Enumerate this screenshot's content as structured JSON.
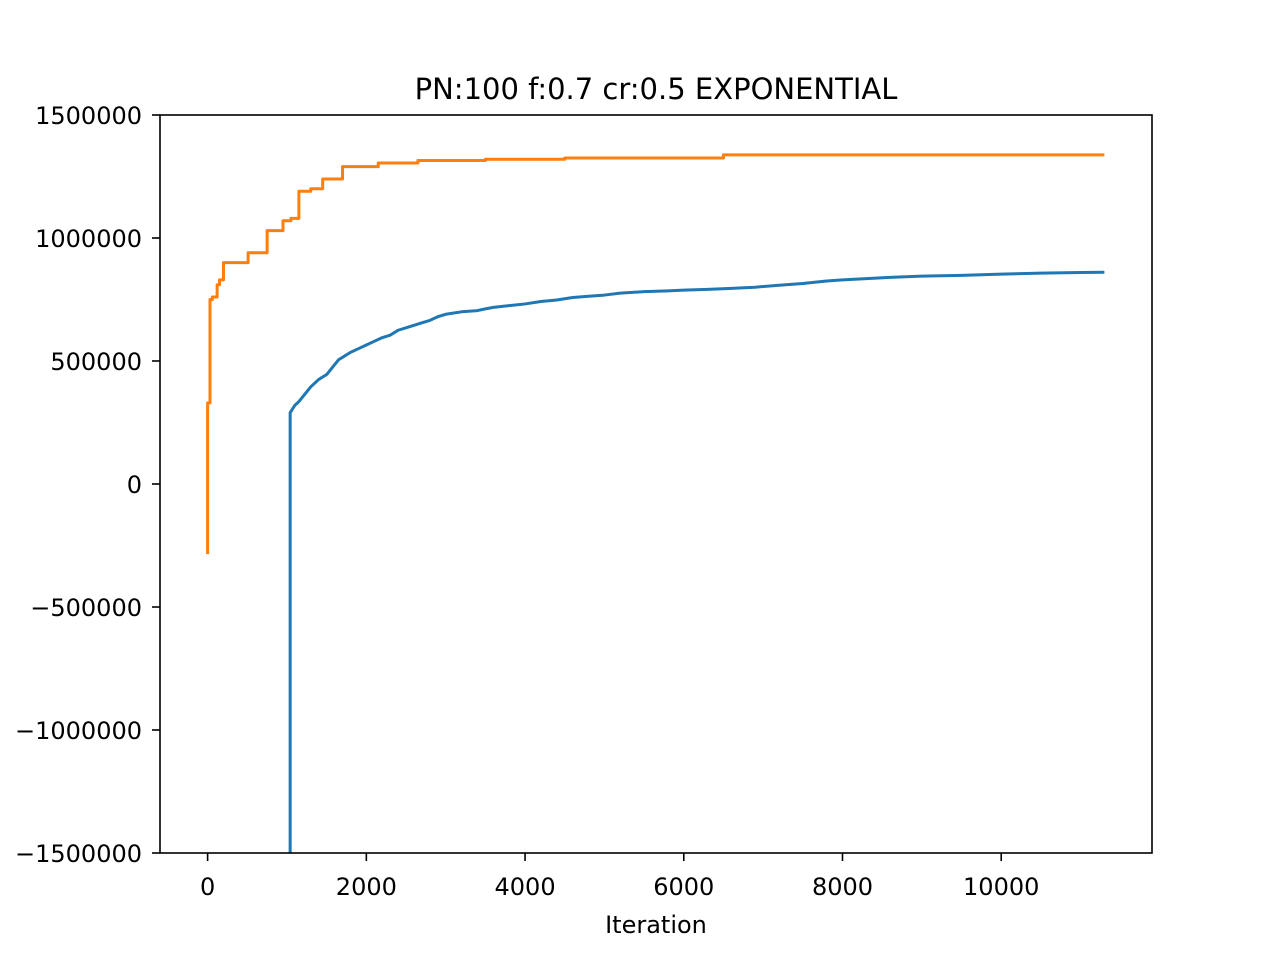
{
  "chart_data": {
    "type": "line",
    "title": "PN:100 f:0.7 cr:0.5 EXPONENTIAL",
    "xlabel": "Iteration",
    "ylabel": "",
    "xlim": [
      -600,
      11900
    ],
    "ylim": [
      -1500000,
      1500000
    ],
    "xticks": [
      0,
      2000,
      4000,
      6000,
      8000,
      10000
    ],
    "xtick_labels": [
      "0",
      "2000",
      "4000",
      "6000",
      "8000",
      "10000"
    ],
    "yticks": [
      -1500000,
      -1000000,
      -500000,
      0,
      500000,
      1000000,
      1500000
    ],
    "ytick_labels": [
      "−1500000",
      "−1000000",
      "−500000",
      "0",
      "500000",
      "1000000",
      "1500000"
    ],
    "grid": false,
    "legend": "none",
    "series": [
      {
        "color": "#1f77b4",
        "step": false,
        "x": [
          1040,
          1040,
          1080,
          1100,
          1150,
          1200,
          1250,
          1300,
          1400,
          1500,
          1600,
          1650,
          1700,
          1800,
          1900,
          2000,
          2100,
          2200,
          2300,
          2400,
          2500,
          2600,
          2700,
          2800,
          2900,
          3000,
          3200,
          3400,
          3500,
          3600,
          3800,
          4000,
          4200,
          4400,
          4600,
          4800,
          5000,
          5200,
          5300,
          5500,
          5800,
          6000,
          6300,
          6600,
          6900,
          7200,
          7500,
          7800,
          8000,
          8300,
          8600,
          9000,
          9500,
          10000,
          10500,
          11000,
          11300
        ],
        "y": [
          -1500000,
          290000,
          310000,
          320000,
          335000,
          355000,
          375000,
          395000,
          425000,
          445000,
          485000,
          505000,
          515000,
          535000,
          550000,
          565000,
          580000,
          595000,
          605000,
          625000,
          635000,
          645000,
          655000,
          665000,
          680000,
          690000,
          700000,
          705000,
          712000,
          718000,
          725000,
          732000,
          742000,
          748000,
          758000,
          763000,
          768000,
          776000,
          778000,
          782000,
          785000,
          788000,
          791000,
          795000,
          800000,
          808000,
          815000,
          825000,
          830000,
          835000,
          840000,
          845000,
          848000,
          853000,
          857000,
          860000,
          861000
        ]
      },
      {
        "color": "#ff7f0e",
        "step": true,
        "x": [
          0,
          0,
          30,
          60,
          120,
          150,
          200,
          220,
          510,
          750,
          950,
          1050,
          1150,
          1300,
          1450,
          1700,
          2150,
          2650,
          3500,
          4500,
          6500,
          11300
        ],
        "y": [
          -285000,
          330000,
          750000,
          760000,
          810000,
          830000,
          900000,
          900000,
          940000,
          1030000,
          1070000,
          1080000,
          1190000,
          1200000,
          1240000,
          1290000,
          1305000,
          1315000,
          1320000,
          1325000,
          1338000,
          1338000
        ]
      }
    ]
  }
}
